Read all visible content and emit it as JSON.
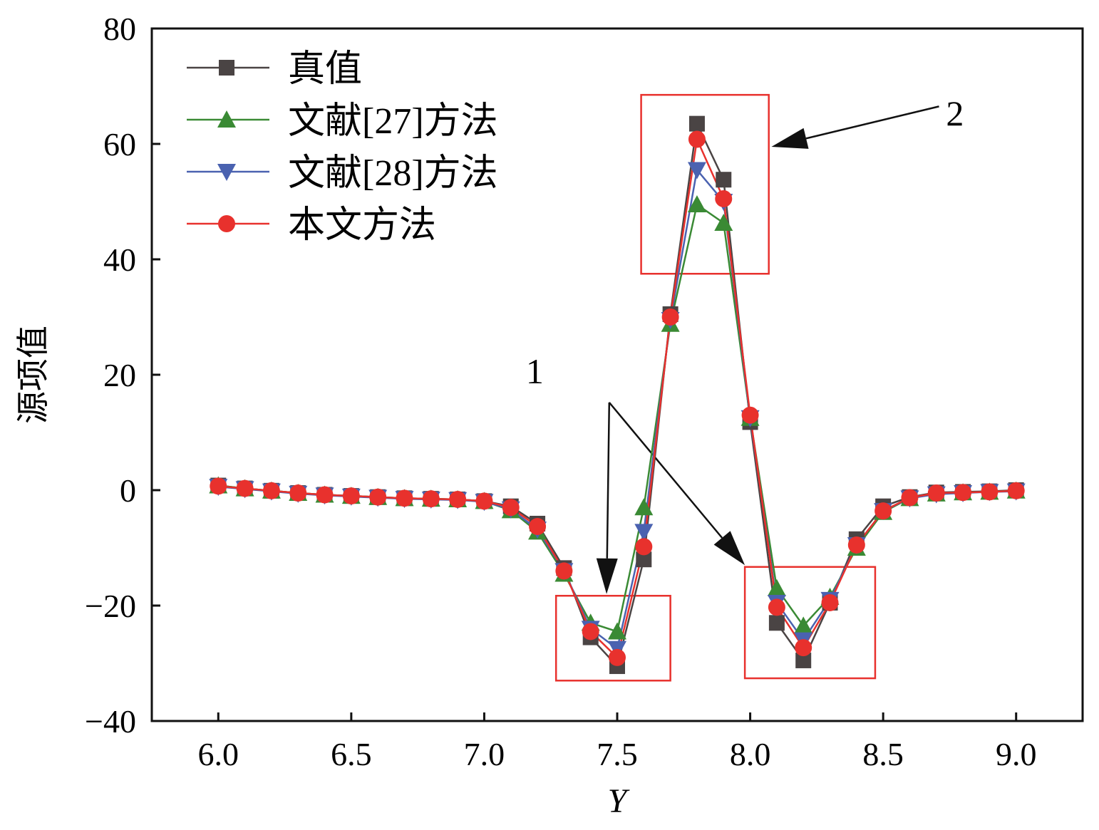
{
  "chart_data": {
    "type": "line",
    "title": "",
    "xlabel": "Y",
    "ylabel": "源项值",
    "xlim": [
      5.75,
      9.25
    ],
    "ylim": [
      -40,
      80
    ],
    "xticks": [
      6.0,
      6.5,
      7.0,
      7.5,
      8.0,
      8.5,
      9.0
    ],
    "xtick_labels": [
      "6.0",
      "6.5",
      "7.0",
      "7.5",
      "8.0",
      "8.5",
      "9.0"
    ],
    "yticks": [
      -40,
      -20,
      0,
      20,
      40,
      60,
      80
    ],
    "ytick_labels": [
      "−40",
      "−20",
      "0",
      "20",
      "40",
      "60",
      "80"
    ],
    "grid": false,
    "legend_position": "top-left",
    "x": [
      6.0,
      6.1,
      6.2,
      6.3,
      6.4,
      6.5,
      6.6,
      6.7,
      6.8,
      6.9,
      7.0,
      7.1,
      7.2,
      7.3,
      7.4,
      7.5,
      7.6,
      7.7,
      7.8,
      7.9,
      8.0,
      8.1,
      8.2,
      8.3,
      8.4,
      8.5,
      8.6,
      8.7,
      8.8,
      8.9,
      9.0
    ],
    "series": [
      {
        "name": "真值",
        "color": "#4a4444",
        "marker": "square",
        "values": [
          0.8,
          0.3,
          -0.1,
          -0.5,
          -0.8,
          -1.0,
          -1.2,
          -1.4,
          -1.5,
          -1.6,
          -1.9,
          -2.8,
          -5.8,
          -13.5,
          -25.5,
          -30.5,
          -12.0,
          30.5,
          63.5,
          53.8,
          11.8,
          -23.0,
          -29.5,
          -19.5,
          -8.5,
          -2.8,
          -1.2,
          -0.4,
          -0.3,
          -0.2,
          0.0
        ]
      },
      {
        "name": "文献[27]方法",
        "color": "#3a8a34",
        "marker": "triangle-up",
        "values": [
          0.8,
          0.3,
          -0.1,
          -0.5,
          -0.8,
          -1.0,
          -1.2,
          -1.4,
          -1.5,
          -1.6,
          -1.9,
          -3.5,
          -7.2,
          -14.5,
          -23.0,
          -24.5,
          -3.0,
          28.8,
          49.5,
          46.3,
          12.5,
          -17.0,
          -23.5,
          -18.5,
          -10.0,
          -3.8,
          -1.4,
          -0.6,
          -0.4,
          -0.3,
          -0.1
        ]
      },
      {
        "name": "文献[28]方法",
        "color": "#4a62b0",
        "marker": "triangle-down",
        "values": [
          0.6,
          0.2,
          -0.2,
          -0.6,
          -0.9,
          -1.1,
          -1.3,
          -1.5,
          -1.6,
          -1.7,
          -2.0,
          -3.3,
          -6.8,
          -14.0,
          -24.0,
          -27.5,
          -7.2,
          29.5,
          55.5,
          50.0,
          12.5,
          -19.5,
          -26.0,
          -19.0,
          -9.5,
          -3.6,
          -1.4,
          -0.7,
          -0.5,
          -0.3,
          -0.2
        ]
      },
      {
        "name": "本文方法",
        "color": "#e8312d",
        "marker": "circle",
        "values": [
          0.7,
          0.3,
          -0.1,
          -0.5,
          -0.8,
          -1.0,
          -1.2,
          -1.4,
          -1.5,
          -1.6,
          -1.9,
          -3.0,
          -6.3,
          -14.0,
          -24.5,
          -29.0,
          -9.8,
          30.0,
          60.8,
          50.5,
          13.0,
          -20.3,
          -27.3,
          -19.5,
          -9.5,
          -3.6,
          -1.3,
          -0.5,
          -0.4,
          -0.3,
          -0.1
        ]
      }
    ],
    "annotations": {
      "box_color": "#e8312d",
      "boxes": [
        {
          "x0": 7.27,
          "x1": 7.7,
          "y0": -33.0,
          "y1": -18.3
        },
        {
          "x0": 7.98,
          "x1": 8.47,
          "y0": -32.6,
          "y1": -13.3
        },
        {
          "x0": 7.59,
          "x1": 8.07,
          "y0": 37.5,
          "y1": 68.5
        }
      ],
      "labels": [
        {
          "text": "1",
          "x": 7.19,
          "y": 18.5
        },
        {
          "text": "2",
          "x": 8.77,
          "y": 63.2
        }
      ],
      "arrows": [
        {
          "from": [
            7.47,
            15.2
          ],
          "to": [
            7.46,
            -18.0
          ]
        },
        {
          "from": [
            7.47,
            15.2
          ],
          "to": [
            7.98,
            -13.0
          ]
        },
        {
          "from": [
            8.71,
            66.5
          ],
          "to": [
            8.08,
            59.5
          ]
        }
      ]
    }
  }
}
